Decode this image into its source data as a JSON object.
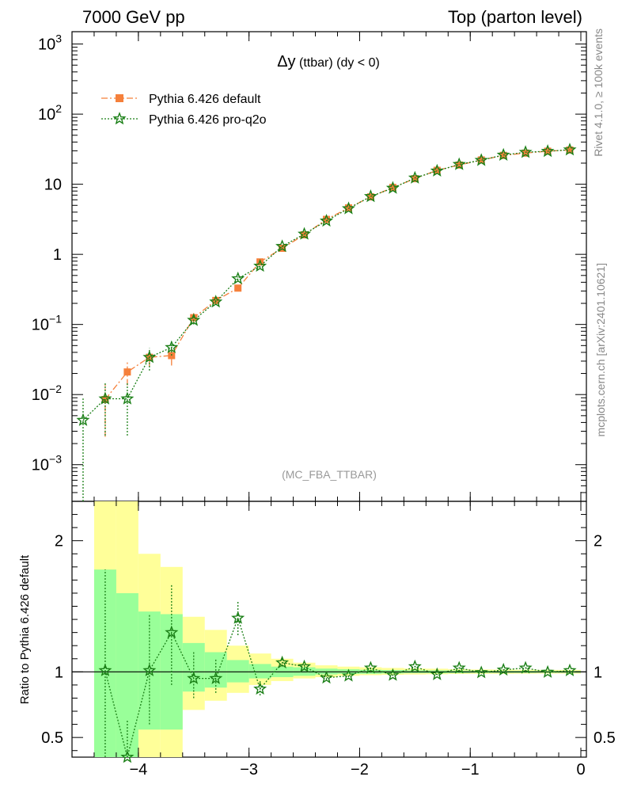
{
  "header": {
    "left": "7000 GeV pp",
    "right": "Top (parton level)"
  },
  "title_main": "Δy",
  "title_sub": " (ttbar)  (dy < 0)",
  "analysis_tag": "(MC_FBA_TTBAR)",
  "side_right_top": "Rivet 4.1.0, ≥ 100k events",
  "side_right_bottom": "mcplots.cern.ch [arXiv:2401.10621]",
  "ratio_ylabel": "Ratio to Pythia 6.426 default",
  "colors": {
    "default": "#f5803b",
    "pro": "#1a7f16",
    "band_inner": "#99ff99",
    "band_outer": "#ffff99"
  },
  "chart_data": {
    "type": "line",
    "x_range": [
      -4.6,
      0.05
    ],
    "x_ticks": [
      {
        "value": -4,
        "label": "−4"
      },
      {
        "value": -3,
        "label": "−3"
      },
      {
        "value": -2,
        "label": "−2"
      },
      {
        "value": -1,
        "label": "−1"
      },
      {
        "value": 0,
        "label": "0"
      }
    ],
    "main": {
      "yscale": "log",
      "ylim": [
        0.0003,
        1500
      ],
      "y_ticks": [
        {
          "value": 1000,
          "base": "10",
          "exp": "3",
          "suffix": ""
        },
        {
          "value": 100,
          "base": "10",
          "exp": "2",
          "suffix": ""
        },
        {
          "value": 10,
          "base": "10",
          "exp": "",
          "suffix": ""
        },
        {
          "value": 1,
          "base": "1",
          "exp": "",
          "suffix": ""
        },
        {
          "value": 0.1,
          "base": "10",
          "exp": "−1",
          "suffix": ""
        },
        {
          "value": 0.01,
          "base": "10",
          "exp": "−2",
          "suffix": ""
        },
        {
          "value": 0.001,
          "base": "10",
          "exp": "−3",
          "suffix": ""
        }
      ]
    },
    "ratio": {
      "ylim": [
        0.35,
        2.3
      ],
      "y_ticks": [
        {
          "value": 2,
          "label": "2"
        },
        {
          "value": 1,
          "label": "1"
        },
        {
          "value": 0.5,
          "label": "0.5"
        }
      ],
      "band_inner": [
        {
          "x0": -4.4,
          "x1": -4.2,
          "lo": 0.35,
          "hi": 1.78
        },
        {
          "x0": -4.2,
          "x1": -4.0,
          "lo": 0.35,
          "hi": 1.6
        },
        {
          "x0": -4.0,
          "x1": -3.8,
          "lo": 0.56,
          "hi": 1.46
        },
        {
          "x0": -3.8,
          "x1": -3.6,
          "lo": 0.56,
          "hi": 1.44
        },
        {
          "x0": -3.6,
          "x1": -3.4,
          "lo": 0.85,
          "hi": 1.22
        },
        {
          "x0": -3.4,
          "x1": -3.2,
          "lo": 0.88,
          "hi": 1.15
        },
        {
          "x0": -3.2,
          "x1": -3.0,
          "lo": 0.92,
          "hi": 1.09
        },
        {
          "x0": -3.0,
          "x1": -2.8,
          "lo": 0.95,
          "hi": 1.06
        },
        {
          "x0": -2.8,
          "x1": -2.6,
          "lo": 0.96,
          "hi": 1.04
        },
        {
          "x0": -2.6,
          "x1": -2.4,
          "lo": 0.97,
          "hi": 1.035
        },
        {
          "x0": -2.4,
          "x1": -2.2,
          "lo": 0.98,
          "hi": 1.025
        },
        {
          "x0": -2.2,
          "x1": -2.0,
          "lo": 0.985,
          "hi": 1.02
        },
        {
          "x0": -2.0,
          "x1": -1.8,
          "lo": 0.985,
          "hi": 1.016
        },
        {
          "x0": -1.8,
          "x1": -1.6,
          "lo": 0.988,
          "hi": 1.014
        },
        {
          "x0": -1.6,
          "x1": -1.4,
          "lo": 0.99,
          "hi": 1.012
        },
        {
          "x0": -1.4,
          "x1": -1.2,
          "lo": 0.99,
          "hi": 1.011
        },
        {
          "x0": -1.2,
          "x1": -1.0,
          "lo": 0.99,
          "hi": 1.01
        },
        {
          "x0": -1.0,
          "x1": -0.8,
          "lo": 0.992,
          "hi": 1.009
        },
        {
          "x0": -0.8,
          "x1": -0.6,
          "lo": 0.992,
          "hi": 1.008
        },
        {
          "x0": -0.6,
          "x1": -0.4,
          "lo": 0.992,
          "hi": 1.008
        },
        {
          "x0": -0.4,
          "x1": -0.2,
          "lo": 0.993,
          "hi": 1.007
        },
        {
          "x0": -0.2,
          "x1": 0.0,
          "lo": 0.993,
          "hi": 1.007
        }
      ],
      "band_outer": [
        {
          "x0": -4.4,
          "x1": -4.2,
          "lo": 0.35,
          "hi": 2.3
        },
        {
          "x0": -4.2,
          "x1": -4.0,
          "lo": 0.35,
          "hi": 2.3
        },
        {
          "x0": -4.0,
          "x1": -3.8,
          "lo": 0.35,
          "hi": 1.9
        },
        {
          "x0": -3.8,
          "x1": -3.6,
          "lo": 0.35,
          "hi": 1.8
        },
        {
          "x0": -3.6,
          "x1": -3.4,
          "lo": 0.71,
          "hi": 1.42
        },
        {
          "x0": -3.4,
          "x1": -3.2,
          "lo": 0.78,
          "hi": 1.32
        },
        {
          "x0": -3.2,
          "x1": -3.0,
          "lo": 0.84,
          "hi": 1.2
        },
        {
          "x0": -3.0,
          "x1": -2.8,
          "lo": 0.9,
          "hi": 1.14
        },
        {
          "x0": -2.8,
          "x1": -2.6,
          "lo": 0.93,
          "hi": 1.1
        },
        {
          "x0": -2.6,
          "x1": -2.4,
          "lo": 0.95,
          "hi": 1.07
        },
        {
          "x0": -2.4,
          "x1": -2.2,
          "lo": 0.96,
          "hi": 1.05
        },
        {
          "x0": -2.2,
          "x1": -2.0,
          "lo": 0.97,
          "hi": 1.04
        },
        {
          "x0": -2.0,
          "x1": -1.8,
          "lo": 0.975,
          "hi": 1.035
        },
        {
          "x0": -1.8,
          "x1": -1.6,
          "lo": 0.978,
          "hi": 1.03
        },
        {
          "x0": -1.6,
          "x1": -1.4,
          "lo": 0.98,
          "hi": 1.026
        },
        {
          "x0": -1.4,
          "x1": -1.2,
          "lo": 0.982,
          "hi": 1.024
        },
        {
          "x0": -1.2,
          "x1": -1.0,
          "lo": 0.984,
          "hi": 1.02
        },
        {
          "x0": -1.0,
          "x1": -0.8,
          "lo": 0.985,
          "hi": 1.018
        },
        {
          "x0": -0.8,
          "x1": -0.6,
          "lo": 0.985,
          "hi": 1.017
        },
        {
          "x0": -0.6,
          "x1": -0.4,
          "lo": 0.986,
          "hi": 1.016
        },
        {
          "x0": -0.4,
          "x1": -0.2,
          "lo": 0.987,
          "hi": 1.015
        },
        {
          "x0": -0.2,
          "x1": 0.0,
          "lo": 0.987,
          "hi": 1.015
        }
      ]
    },
    "series": [
      {
        "name": "Pythia 6.426 default",
        "key": "default",
        "marker": "square",
        "dash": "8,3,2,3",
        "points": [
          {
            "x": -4.3,
            "y": 0.0085,
            "lo": 0.0025,
            "hi": 0.014,
            "r": 1.0,
            "rlo": 1.0,
            "rhi": 1.0
          },
          {
            "x": -4.1,
            "y": 0.021,
            "lo": 0.0135,
            "hi": 0.029,
            "r": 1.0,
            "rlo": 1.0,
            "rhi": 1.0
          },
          {
            "x": -3.9,
            "y": 0.034,
            "lo": 0.025,
            "hi": 0.043,
            "r": 1.0,
            "rlo": 1.0,
            "rhi": 1.0
          },
          {
            "x": -3.7,
            "y": 0.036,
            "lo": 0.026,
            "hi": 0.046,
            "r": 1.0,
            "rlo": 1.0,
            "rhi": 1.0
          },
          {
            "x": -3.5,
            "y": 0.125,
            "lo": 0.105,
            "hi": 0.145,
            "r": 1.0,
            "rlo": 1.0,
            "rhi": 1.0
          },
          {
            "x": -3.3,
            "y": 0.22,
            "lo": 0.2,
            "hi": 0.24,
            "r": 1.0,
            "rlo": 1.0,
            "rhi": 1.0
          },
          {
            "x": -3.1,
            "y": 0.33,
            "lo": 0.31,
            "hi": 0.35,
            "r": 1.0,
            "rlo": 1.0,
            "rhi": 1.0
          },
          {
            "x": -2.9,
            "y": 0.78,
            "lo": 0.74,
            "hi": 0.82,
            "r": 1.0,
            "rlo": 1.0,
            "rhi": 1.0
          },
          {
            "x": -2.7,
            "y": 1.22,
            "lo": 1.18,
            "hi": 1.26,
            "r": 1.0,
            "rlo": 1.0,
            "rhi": 1.0
          },
          {
            "x": -2.5,
            "y": 1.9,
            "lo": 1.86,
            "hi": 1.94,
            "r": 1.0,
            "rlo": 1.0,
            "rhi": 1.0
          },
          {
            "x": -2.3,
            "y": 3.15,
            "lo": 3.1,
            "hi": 3.2,
            "r": 1.0,
            "rlo": 1.0,
            "rhi": 1.0
          },
          {
            "x": -2.1,
            "y": 4.6,
            "lo": 4.55,
            "hi": 4.65,
            "r": 1.0,
            "rlo": 1.0,
            "rhi": 1.0
          },
          {
            "x": -1.9,
            "y": 6.6,
            "lo": 6.55,
            "hi": 6.65,
            "r": 1.0,
            "rlo": 1.0,
            "rhi": 1.0
          },
          {
            "x": -1.7,
            "y": 9.0,
            "lo": 8.95,
            "hi": 9.05,
            "r": 1.0,
            "rlo": 1.0,
            "rhi": 1.0
          },
          {
            "x": -1.5,
            "y": 12.0,
            "lo": 11.9,
            "hi": 12.1,
            "r": 1.0,
            "rlo": 1.0,
            "rhi": 1.0
          },
          {
            "x": -1.3,
            "y": 15.8,
            "lo": 15.7,
            "hi": 15.9,
            "r": 1.0,
            "rlo": 1.0,
            "rhi": 1.0
          },
          {
            "x": -1.1,
            "y": 18.8,
            "lo": 18.7,
            "hi": 18.9,
            "r": 1.0,
            "rlo": 1.0,
            "rhi": 1.0
          },
          {
            "x": -0.9,
            "y": 22.2,
            "lo": 22.1,
            "hi": 22.3,
            "r": 1.0,
            "rlo": 1.0,
            "rhi": 1.0
          },
          {
            "x": -0.7,
            "y": 25.8,
            "lo": 25.7,
            "hi": 25.9,
            "r": 1.0,
            "rlo": 1.0,
            "rhi": 1.0
          },
          {
            "x": -0.5,
            "y": 27.8,
            "lo": 27.7,
            "hi": 27.9,
            "r": 1.0,
            "rlo": 1.0,
            "rhi": 1.0
          },
          {
            "x": -0.3,
            "y": 29.6,
            "lo": 29.5,
            "hi": 29.7,
            "r": 1.0,
            "rlo": 1.0,
            "rhi": 1.0
          },
          {
            "x": -0.1,
            "y": 30.8,
            "lo": 30.7,
            "hi": 30.9,
            "r": 1.0,
            "rlo": 1.0,
            "rhi": 1.0
          }
        ]
      },
      {
        "name": "Pythia 6.426 pro-q2o",
        "key": "pro",
        "marker": "star",
        "dash": "2,2",
        "points": [
          {
            "x": -4.5,
            "y": 0.0043,
            "lo": 1e-05,
            "hi": 0.0088,
            "r": null,
            "rlo": null,
            "rhi": null
          },
          {
            "x": -4.3,
            "y": 0.0087,
            "lo": 0.0026,
            "hi": 0.0148,
            "r": 1.01,
            "rlo": 0.35,
            "rhi": 1.78
          },
          {
            "x": -4.1,
            "y": 0.0087,
            "lo": 0.0026,
            "hi": 0.0148,
            "r": 0.35,
            "rlo": 0.35,
            "rhi": 0.64
          },
          {
            "x": -3.9,
            "y": 0.034,
            "lo": 0.022,
            "hi": 0.046,
            "r": 1.01,
            "rlo": 0.6,
            "rhi": 1.44
          },
          {
            "x": -3.7,
            "y": 0.047,
            "lo": 0.036,
            "hi": 0.058,
            "r": 1.3,
            "rlo": 0.9,
            "rhi": 1.67
          },
          {
            "x": -3.5,
            "y": 0.115,
            "lo": 0.1,
            "hi": 0.13,
            "r": 0.95,
            "rlo": 0.8,
            "rhi": 1.15
          },
          {
            "x": -3.3,
            "y": 0.21,
            "lo": 0.19,
            "hi": 0.23,
            "r": 0.95,
            "rlo": 0.84,
            "rhi": 1.1
          },
          {
            "x": -3.1,
            "y": 0.45,
            "lo": 0.42,
            "hi": 0.48,
            "r": 1.41,
            "rlo": 1.28,
            "rhi": 1.54
          },
          {
            "x": -2.9,
            "y": 0.68,
            "lo": 0.64,
            "hi": 0.72,
            "r": 0.87,
            "rlo": 0.82,
            "rhi": 0.93
          },
          {
            "x": -2.7,
            "y": 1.3,
            "lo": 1.26,
            "hi": 1.34,
            "r": 1.07,
            "rlo": 1.04,
            "rhi": 1.1
          },
          {
            "x": -2.5,
            "y": 1.95,
            "lo": 1.91,
            "hi": 1.99,
            "r": 1.04,
            "rlo": 1.02,
            "rhi": 1.06
          },
          {
            "x": -2.3,
            "y": 3.0,
            "lo": 2.95,
            "hi": 3.05,
            "r": 0.955,
            "rlo": 0.94,
            "rhi": 0.97
          },
          {
            "x": -2.1,
            "y": 4.5,
            "lo": 4.45,
            "hi": 4.55,
            "r": 0.97,
            "rlo": 0.96,
            "rhi": 0.98
          },
          {
            "x": -1.9,
            "y": 6.7,
            "lo": 6.65,
            "hi": 6.75,
            "r": 1.03,
            "rlo": 1.02,
            "rhi": 1.04
          },
          {
            "x": -1.7,
            "y": 8.8,
            "lo": 8.75,
            "hi": 8.85,
            "r": 0.975,
            "rlo": 0.97,
            "rhi": 0.98
          },
          {
            "x": -1.5,
            "y": 12.3,
            "lo": 12.2,
            "hi": 12.4,
            "r": 1.04,
            "rlo": 1.035,
            "rhi": 1.045
          },
          {
            "x": -1.3,
            "y": 15.5,
            "lo": 15.4,
            "hi": 15.6,
            "r": 0.98,
            "rlo": 0.975,
            "rhi": 0.985
          },
          {
            "x": -1.1,
            "y": 19.2,
            "lo": 19.1,
            "hi": 19.3,
            "r": 1.03,
            "rlo": 1.025,
            "rhi": 1.035
          },
          {
            "x": -0.9,
            "y": 22.0,
            "lo": 21.9,
            "hi": 22.1,
            "r": 0.995,
            "rlo": 0.99,
            "rhi": 1.0
          },
          {
            "x": -0.7,
            "y": 26.1,
            "lo": 26.0,
            "hi": 26.2,
            "r": 1.015,
            "rlo": 1.01,
            "rhi": 1.02
          },
          {
            "x": -0.5,
            "y": 28.6,
            "lo": 28.5,
            "hi": 28.7,
            "r": 1.03,
            "rlo": 1.025,
            "rhi": 1.035
          },
          {
            "x": -0.3,
            "y": 29.5,
            "lo": 29.4,
            "hi": 29.6,
            "r": 0.998,
            "rlo": 0.995,
            "rhi": 1.0
          },
          {
            "x": -0.1,
            "y": 31.0,
            "lo": 30.9,
            "hi": 31.1,
            "r": 1.01,
            "rlo": 1.005,
            "rhi": 1.015
          }
        ]
      }
    ]
  }
}
